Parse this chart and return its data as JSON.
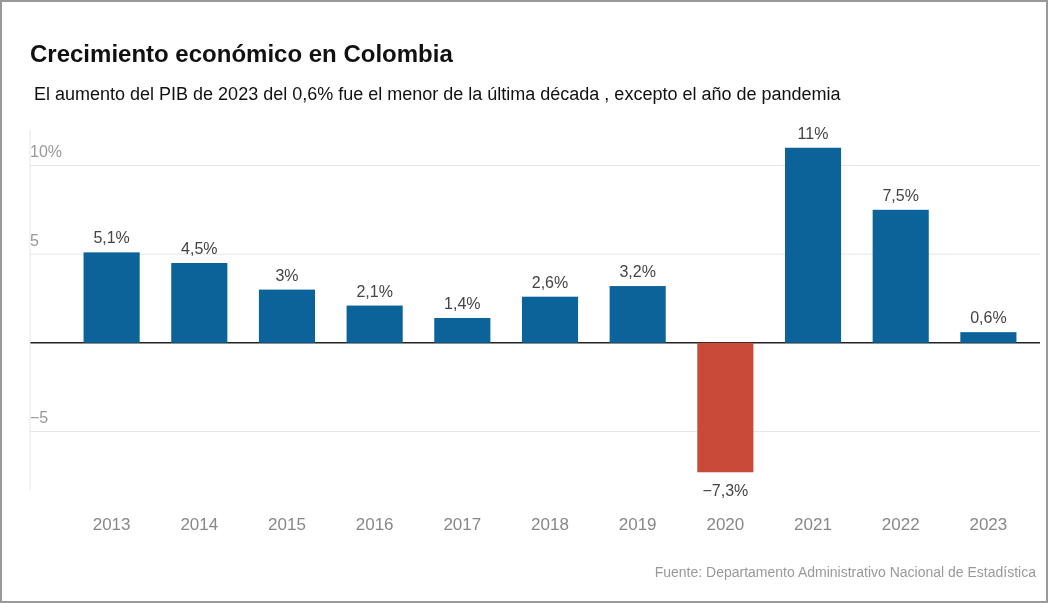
{
  "chart_data": {
    "type": "bar",
    "title": "Crecimiento económico en Colombia",
    "subtitle": "El aumento del PIB de 2023 del 0,6% fue el menor de la última década , excepto el año de pandemia",
    "categories": [
      "2013",
      "2014",
      "2015",
      "2016",
      "2017",
      "2018",
      "2019",
      "2020",
      "2021",
      "2022",
      "2023"
    ],
    "values": [
      5.1,
      4.5,
      3,
      2.1,
      1.4,
      2.6,
      3.2,
      -7.3,
      11,
      7.5,
      0.6
    ],
    "colors": [
      "#0b6399",
      "#0b6399",
      "#0b6399",
      "#0b6399",
      "#0b6399",
      "#0b6399",
      "#0b6399",
      "#c94a38",
      "#0b6399",
      "#0b6399",
      "#0b6399"
    ],
    "value_labels": [
      "5,1%",
      "4,5%",
      "3%",
      "2,1%",
      "1,4%",
      "2,6%",
      "3,2%",
      "−7,3%",
      "11%",
      "7,5%",
      "0,6%"
    ],
    "ylim": [
      -8.3,
      12
    ],
    "yticks": [
      {
        "value": -5,
        "label": "−5"
      },
      {
        "value": 0,
        "label": null
      },
      5,
      {
        "value": 10,
        "label": "10%"
      }
    ],
    "grid": "y",
    "annotations": [
      "Fuente: Departamento Administrativo Nacional de Estadística"
    ]
  }
}
